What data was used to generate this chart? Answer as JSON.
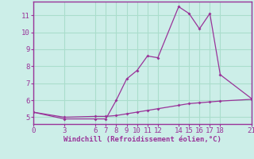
{
  "xlabel": "Windchill (Refroidissement éolien,°C)",
  "background_color": "#cceee8",
  "grid_color": "#aaddcc",
  "line_color": "#993399",
  "line1_x": [
    0,
    3,
    6,
    7,
    8,
    9,
    10,
    11,
    12,
    14,
    15,
    16,
    17,
    18,
    21
  ],
  "line1_y": [
    5.3,
    4.9,
    4.9,
    4.9,
    6.0,
    7.25,
    7.75,
    8.6,
    8.5,
    11.5,
    11.1,
    10.2,
    11.1,
    7.5,
    6.1
  ],
  "line2_x": [
    0,
    3,
    6,
    7,
    8,
    9,
    10,
    11,
    12,
    14,
    15,
    16,
    17,
    18,
    21
  ],
  "line2_y": [
    5.3,
    5.0,
    5.05,
    5.05,
    5.1,
    5.2,
    5.3,
    5.4,
    5.5,
    5.7,
    5.8,
    5.85,
    5.9,
    5.95,
    6.05
  ],
  "xlim": [
    0,
    21
  ],
  "ylim": [
    4.6,
    11.8
  ],
  "yticks": [
    5,
    6,
    7,
    8,
    9,
    10,
    11
  ],
  "xticks": [
    0,
    3,
    6,
    7,
    8,
    9,
    10,
    11,
    12,
    14,
    15,
    16,
    17,
    18,
    21
  ],
  "label_fontsize": 6.5,
  "tick_fontsize": 6.5
}
